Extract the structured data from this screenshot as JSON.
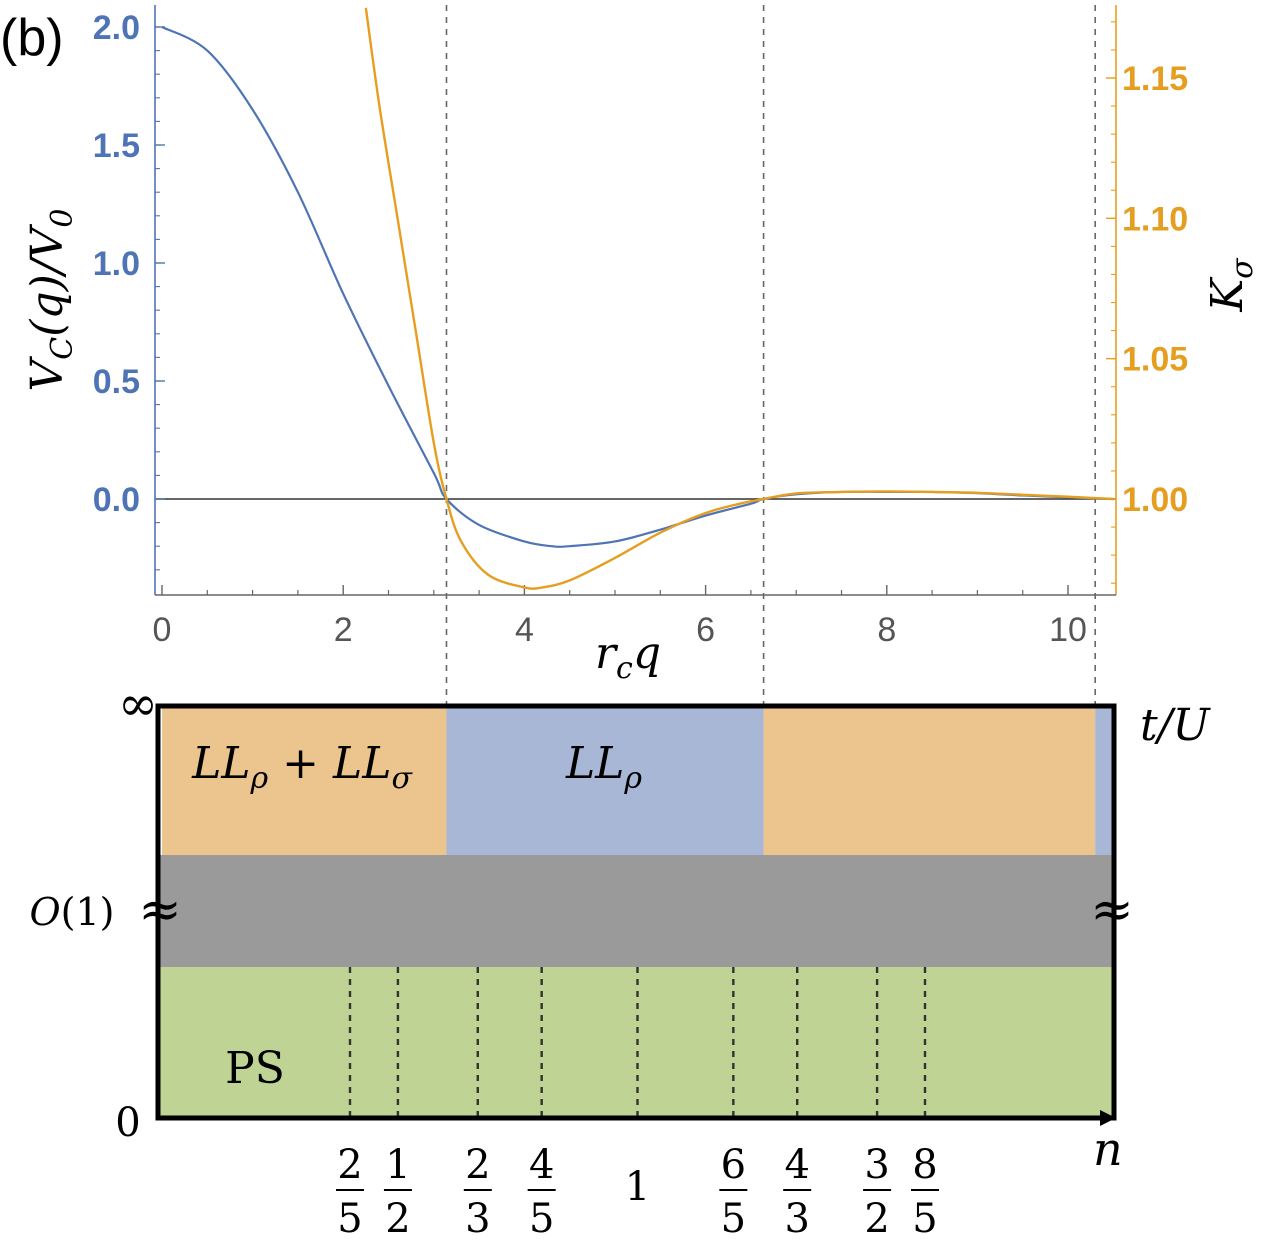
{
  "panel_label": "(b)",
  "colors": {
    "vc": "#4F74B5",
    "k": "#E69E20",
    "ll_both": "#ECC58E",
    "ll_rho": "#A8B7D5",
    "crossover": "#9A9A9A",
    "ps": "#BFD494"
  },
  "chart_data": [
    {
      "type": "line",
      "title": "",
      "xlabel": "r_c q",
      "ylabel_left": "V_C(q)/V_0",
      "ylabel_right": "K_σ",
      "xlim": [
        0,
        10.5
      ],
      "ylim_left": [
        -0.4,
        2.1
      ],
      "ylim_right": [
        0.965,
        1.175
      ],
      "x_ticks": [
        "0",
        "2",
        "4",
        "6",
        "8",
        "10"
      ],
      "y_ticks_left": [
        "0.0",
        "0.5",
        "1.0",
        "1.5",
        "2.0"
      ],
      "y_ticks_right": [
        "1.00",
        "1.05",
        "1.10",
        "1.15"
      ],
      "vertical_dashed_lines_x": [
        3.14,
        6.64,
        10.3
      ],
      "series": [
        {
          "name": "V_C(q)/V_0",
          "axis": "left",
          "x": [
            0,
            0.5,
            1.0,
            1.5,
            2.0,
            2.5,
            3.0,
            3.14,
            3.5,
            4.0,
            4.3,
            4.5,
            5.0,
            5.5,
            6.0,
            6.5,
            6.64,
            7.0,
            7.5,
            8.0,
            8.5,
            9.0,
            9.5,
            10.0,
            10.5
          ],
          "values": [
            2.0,
            1.9,
            1.65,
            1.3,
            0.87,
            0.48,
            0.11,
            0.0,
            -0.11,
            -0.18,
            -0.2,
            -0.2,
            -0.18,
            -0.13,
            -0.07,
            -0.02,
            0.0,
            0.02,
            0.03,
            0.03,
            0.03,
            0.025,
            0.015,
            0.007,
            0.0
          ]
        },
        {
          "name": "K_σ",
          "axis": "right",
          "x": [
            2.25,
            2.4,
            2.6,
            2.8,
            3.0,
            3.14,
            3.3,
            3.6,
            4.0,
            4.2,
            4.5,
            5.0,
            5.5,
            6.0,
            6.4,
            6.64,
            7.0,
            7.5,
            8.0,
            8.5,
            9.0,
            9.5,
            10.0,
            10.5
          ],
          "values": [
            1.175,
            1.14,
            1.1,
            1.06,
            1.02,
            1.0,
            0.985,
            0.973,
            0.9685,
            0.9685,
            0.971,
            0.979,
            0.988,
            0.995,
            0.9985,
            1.0,
            1.002,
            1.0025,
            1.0027,
            1.0025,
            1.0022,
            1.0015,
            1.0008,
            1.0
          ]
        }
      ]
    },
    {
      "type": "phase-diagram",
      "x_axis_label": "n",
      "y_axis_label": "t/U",
      "y_ticks": [
        "0",
        "O(1)",
        "∞"
      ],
      "regions": [
        {
          "label": "LL_ρ + LL_σ",
          "phase": "ll_both",
          "rq_range": [
            0,
            3.14
          ]
        },
        {
          "label": "LL_ρ",
          "phase": "ll_rho",
          "rq_range": [
            3.14,
            6.64
          ]
        },
        {
          "label": "",
          "phase": "ll_both",
          "rq_range": [
            6.64,
            10.3
          ]
        },
        {
          "label": "",
          "phase": "ll_rho",
          "rq_range": [
            10.3,
            10.5
          ]
        }
      ],
      "crossover_label": "O(1)",
      "ps_label": "PS",
      "n_ticks": [
        {
          "num": "2",
          "den": "5",
          "value": 0.4
        },
        {
          "num": "1",
          "den": "2",
          "value": 0.5
        },
        {
          "num": "2",
          "den": "3",
          "value": 0.6667
        },
        {
          "num": "4",
          "den": "5",
          "value": 0.8
        },
        {
          "num": "1",
          "den": "",
          "value": 1.0
        },
        {
          "num": "6",
          "den": "5",
          "value": 1.2
        },
        {
          "num": "4",
          "den": "3",
          "value": 1.3333
        },
        {
          "num": "3",
          "den": "2",
          "value": 1.5
        },
        {
          "num": "8",
          "den": "5",
          "value": 1.6
        }
      ],
      "break_marks": [
        "≈",
        "≈"
      ]
    }
  ]
}
